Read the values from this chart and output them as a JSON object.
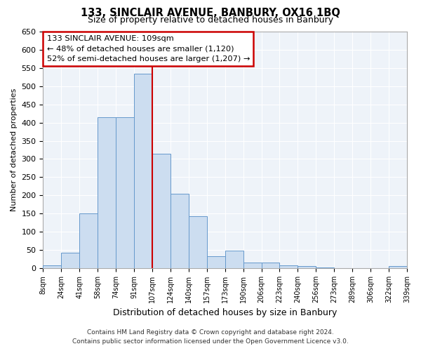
{
  "title": "133, SINCLAIR AVENUE, BANBURY, OX16 1BQ",
  "subtitle": "Size of property relative to detached houses in Banbury",
  "xlabel": "Distribution of detached houses by size in Banbury",
  "ylabel": "Number of detached properties",
  "bar_labels": [
    "8sqm",
    "24sqm",
    "41sqm",
    "58sqm",
    "74sqm",
    "91sqm",
    "107sqm",
    "124sqm",
    "140sqm",
    "157sqm",
    "173sqm",
    "190sqm",
    "206sqm",
    "223sqm",
    "240sqm",
    "256sqm",
    "273sqm",
    "289sqm",
    "306sqm",
    "322sqm",
    "339sqm"
  ],
  "bar_values": [
    8,
    43,
    150,
    415,
    415,
    535,
    315,
    205,
    143,
    33,
    49,
    16,
    16,
    8,
    5,
    2,
    1,
    1,
    1,
    5
  ],
  "bar_color": "#ccddf0",
  "bar_edge_color": "#6699cc",
  "red_line_index": 6,
  "red_line_color": "#cc0000",
  "ylim": [
    0,
    650
  ],
  "yticks": [
    0,
    50,
    100,
    150,
    200,
    250,
    300,
    350,
    400,
    450,
    500,
    550,
    600,
    650
  ],
  "annotation_text": "133 SINCLAIR AVENUE: 109sqm\n← 48% of detached houses are smaller (1,120)\n52% of semi-detached houses are larger (1,207) →",
  "annotation_box_color": "#ffffff",
  "annotation_box_edge_color": "#cc0000",
  "footer_line1": "Contains HM Land Registry data © Crown copyright and database right 2024.",
  "footer_line2": "Contains public sector information licensed under the Open Government Licence v3.0.",
  "bg_color": "#ffffff",
  "plot_bg_color": "#eef3f9",
  "grid_color": "#ffffff"
}
